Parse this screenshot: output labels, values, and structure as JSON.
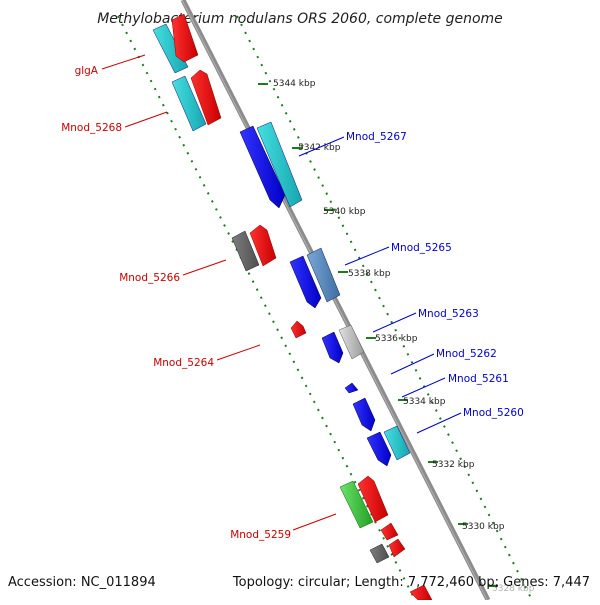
{
  "title": "Methylobacterium nodulans ORS 2060, complete genome",
  "footer": {
    "accession": "Accession: NC_011894",
    "topology": "Topology: circular; Length: 7,772,460 bp; Genes: 7,447"
  },
  "colors": {
    "axis": "#8c8c8c",
    "tick": "#1f7a1f",
    "forward_label": "#cc0000",
    "reverse_label": "#0000cc"
  },
  "ticks": [
    {
      "label": "5344 kbp"
    },
    {
      "label": "5342 kbp"
    },
    {
      "label": "5340 kbp"
    },
    {
      "label": "5338 kbp"
    },
    {
      "label": "5336 kbp"
    },
    {
      "label": "5334 kbp"
    },
    {
      "label": "5332 kbp"
    },
    {
      "label": "5330 kbp"
    },
    {
      "label": "5328 kbp"
    }
  ],
  "genes": [
    {
      "name": "glgA",
      "strand": "forward"
    },
    {
      "name": "Mnod_5268",
      "strand": "forward"
    },
    {
      "name": "Mnod_5266",
      "strand": "forward"
    },
    {
      "name": "Mnod_5264",
      "strand": "forward"
    },
    {
      "name": "Mnod_5259",
      "strand": "forward"
    },
    {
      "name": "Mnod_5267",
      "strand": "reverse"
    },
    {
      "name": "Mnod_5265",
      "strand": "reverse"
    },
    {
      "name": "Mnod_5263",
      "strand": "reverse"
    },
    {
      "name": "Mnod_5262",
      "strand": "reverse"
    },
    {
      "name": "Mnod_5261",
      "strand": "reverse"
    },
    {
      "name": "Mnod_5260",
      "strand": "reverse"
    }
  ]
}
